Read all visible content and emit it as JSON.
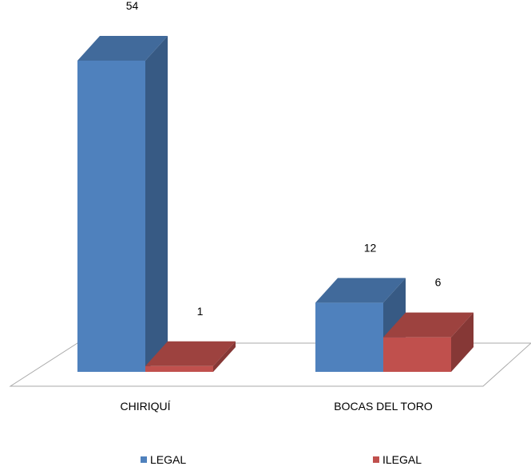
{
  "chart_data": {
    "type": "bar",
    "categories": [
      "CHIRIQUÍ",
      "BOCAS DEL TORO"
    ],
    "series": [
      {
        "name": "LEGAL",
        "values": [
          54,
          12
        ]
      },
      {
        "name": "ILEGAL",
        "values": [
          1,
          6
        ]
      }
    ],
    "ylim": [
      0,
      54
    ],
    "grid": false,
    "legend_position": "bottom",
    "colors": {
      "LEGAL": "#4F81BD",
      "ILEGAL": "#C0504D"
    },
    "data_labels": true,
    "style": "3d-column"
  }
}
